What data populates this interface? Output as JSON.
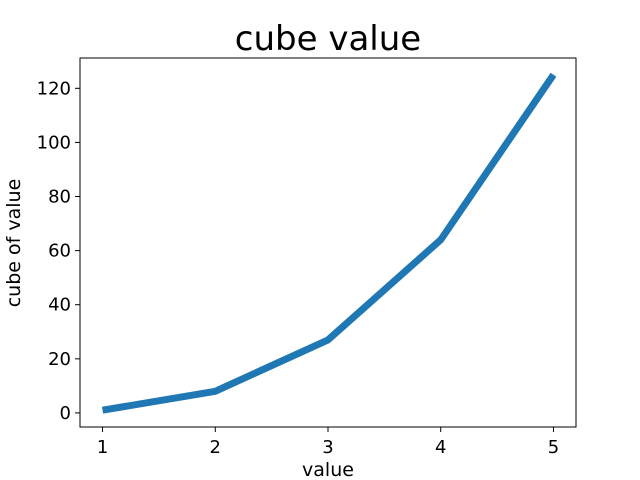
{
  "chart_data": {
    "type": "line",
    "title": "cube value",
    "xlabel": "value",
    "ylabel": "cube of value",
    "x": [
      1,
      2,
      3,
      4,
      5
    ],
    "series": [
      {
        "values": [
          1,
          8,
          27,
          64,
          125
        ],
        "color": "#1f77b4"
      }
    ],
    "xticks": [
      1,
      2,
      3,
      4,
      5
    ],
    "yticks": [
      0,
      20,
      40,
      60,
      80,
      100,
      120
    ],
    "xlim": [
      0.8,
      5.2
    ],
    "ylim": [
      -5.2,
      131.2
    ],
    "grid": false
  }
}
